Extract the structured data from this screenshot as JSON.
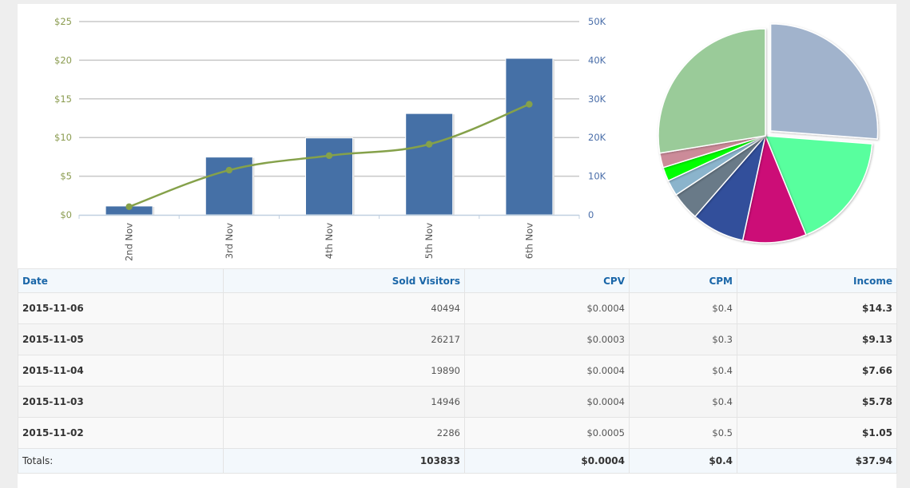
{
  "chart_data": [
    {
      "type": "bar+line",
      "title": "",
      "categories": [
        "2nd Nov",
        "3rd Nov",
        "4th Nov",
        "5th Nov",
        "6th Nov"
      ],
      "series": [
        {
          "name": "Sold Visitors",
          "type": "bar",
          "axis": "right",
          "values": [
            2286,
            14946,
            19890,
            26217,
            40494
          ],
          "color": "#4570a6"
        },
        {
          "name": "Income",
          "type": "line",
          "axis": "left",
          "values": [
            1.05,
            5.78,
            7.66,
            9.13,
            14.3
          ],
          "color": "#85a14a"
        }
      ],
      "left_axis": {
        "ticks": [
          "$0",
          "$5",
          "$10",
          "$15",
          "$20",
          "$25"
        ],
        "range": [
          0,
          25
        ],
        "color": "#8a9b4f"
      },
      "right_axis": {
        "ticks": [
          "0",
          "10K",
          "20K",
          "30K",
          "40K",
          "50K"
        ],
        "range": [
          0,
          50000
        ],
        "color": "#4a6ea9"
      },
      "grid": true
    },
    {
      "type": "pie",
      "title": "",
      "slices": [
        {
          "value": 26.2,
          "color": "#a1b3cc",
          "exploded": true
        },
        {
          "value": 17.6,
          "color": "#58ff9e"
        },
        {
          "value": 9.6,
          "color": "#cc1077"
        },
        {
          "value": 8.0,
          "color": "#30509b"
        },
        {
          "value": 4.3,
          "color": "#697a88"
        },
        {
          "value": 2.4,
          "color": "#8bb4cc"
        },
        {
          "value": 2.1,
          "color": "#00ff00"
        },
        {
          "value": 2.2,
          "color": "#cc8b99"
        },
        {
          "value": 27.6,
          "color": "#9acb99"
        }
      ]
    }
  ],
  "table": {
    "headers": [
      "Date",
      "Sold Visitors",
      "CPV",
      "CPM",
      "Income"
    ],
    "rows": [
      {
        "date": "2015-11-06",
        "visitors": "40494",
        "cpv": "$0.0004",
        "cpm": "$0.4",
        "income": "$14.3"
      },
      {
        "date": "2015-11-05",
        "visitors": "26217",
        "cpv": "$0.0003",
        "cpm": "$0.3",
        "income": "$9.13"
      },
      {
        "date": "2015-11-04",
        "visitors": "19890",
        "cpv": "$0.0004",
        "cpm": "$0.4",
        "income": "$7.66"
      },
      {
        "date": "2015-11-03",
        "visitors": "14946",
        "cpv": "$0.0004",
        "cpm": "$0.4",
        "income": "$5.78"
      },
      {
        "date": "2015-11-02",
        "visitors": "2286",
        "cpv": "$0.0005",
        "cpm": "$0.5",
        "income": "$1.05"
      }
    ],
    "totals": {
      "label": "Totals:",
      "visitors": "103833",
      "cpv": "$0.0004",
      "cpm": "$0.4",
      "income": "$37.94"
    }
  }
}
